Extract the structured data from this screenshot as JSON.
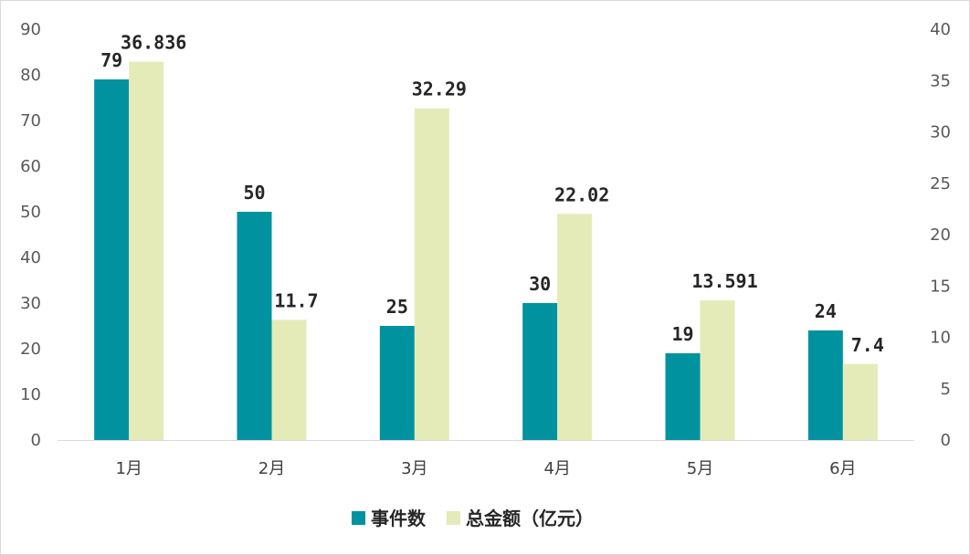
{
  "chart_data": {
    "type": "bar",
    "categories": [
      "1月",
      "2月",
      "3月",
      "4月",
      "5月",
      "6月"
    ],
    "series": [
      {
        "name": "事件数",
        "axis": "left",
        "color": "#00929f",
        "values": [
          79,
          50,
          25,
          30,
          19,
          24
        ],
        "labels": [
          "79",
          "50",
          "25",
          "30",
          "19",
          "24"
        ]
      },
      {
        "name": "总金额（亿元）",
        "axis": "right",
        "color": "#e4ebb8",
        "values": [
          36.836,
          11.7,
          32.29,
          22.02,
          13.591,
          7.4
        ],
        "labels": [
          "36.836",
          "11.7",
          "32.29",
          "22.02",
          "13.591",
          "7.4"
        ]
      }
    ],
    "y_left": {
      "min": 0,
      "max": 90,
      "ticks": [
        "0",
        "10",
        "20",
        "30",
        "40",
        "50",
        "60",
        "70",
        "80",
        "90"
      ]
    },
    "y_right": {
      "min": 0,
      "max": 40,
      "ticks": [
        "0",
        "5",
        "10",
        "15",
        "20",
        "25",
        "30",
        "35",
        "40"
      ]
    },
    "legend_position": "bottom",
    "grid": false
  }
}
